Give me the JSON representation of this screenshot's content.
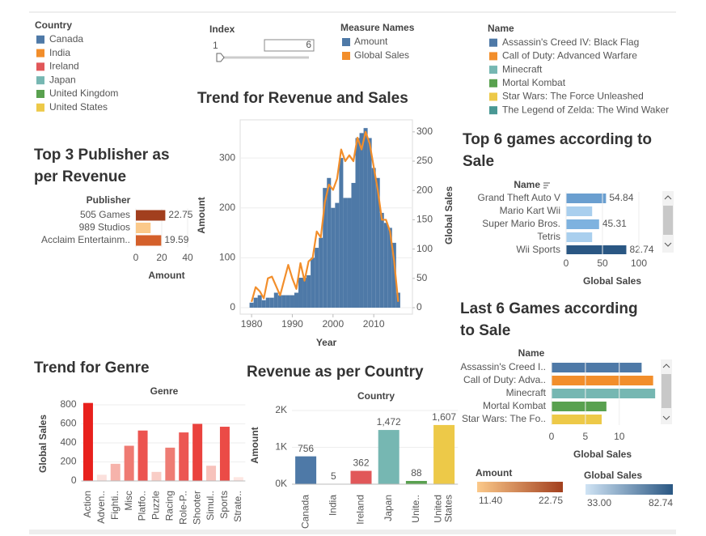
{
  "filters": {
    "title": "Index",
    "min": 1,
    "value": 6
  },
  "chart_data": [
    {
      "type": "hbar",
      "title": "Top 3 Publisher as per Revenue",
      "category_title": "Publisher",
      "categories": [
        "505 Games",
        "989 Studios",
        "Acclaim Entertainm.."
      ],
      "values": [
        22.75,
        11.4,
        19.59
      ],
      "value_labels": [
        "22.75",
        null,
        "19.59"
      ],
      "colors": [
        "#a23f1e",
        "#fbc98a",
        "#d4602b"
      ],
      "xlim": [
        0,
        45
      ],
      "xticks": [
        0,
        20,
        40
      ],
      "xlabel": "Amount",
      "color_legend": {
        "title": "Amount",
        "min": {
          "value": 11.4,
          "label": "11.40"
        },
        "max": 22.75,
        "colors": [
          "#fbc98a",
          "#a23f1e"
        ]
      }
    },
    {
      "type": "combo",
      "title": "Trend for Revenue and Sales",
      "x": [
        1980,
        1981,
        1982,
        1983,
        1984,
        1985,
        1986,
        1987,
        1988,
        1989,
        1990,
        1991,
        1992,
        1993,
        1994,
        1995,
        1996,
        1997,
        1998,
        1999,
        2000,
        2001,
        2002,
        2003,
        2004,
        2005,
        2006,
        2007,
        2008,
        2009,
        2010,
        2011,
        2012,
        2013,
        2014,
        2015,
        2016
      ],
      "xlabel": "Year",
      "xlim": [
        1977.2,
        2019.5
      ],
      "xticks": [
        1980,
        1990,
        2000,
        2010
      ],
      "ylabel": "Amount",
      "ylim": [
        0,
        370
      ],
      "yticks": [
        0,
        100,
        200,
        300
      ],
      "y2label": "Global Sales",
      "y2lim": [
        0,
        315
      ],
      "y2ticks": [
        0,
        50,
        100,
        150,
        200,
        250,
        300
      ],
      "grid": true,
      "legend_title": "Measure Names",
      "series": [
        {
          "name": "Amount",
          "color": "#4e79a7",
          "kind": "bar",
          "values": [
            10,
            20,
            25,
            15,
            20,
            20,
            30,
            25,
            25,
            25,
            25,
            30,
            60,
            60,
            65,
            100,
            120,
            140,
            240,
            260,
            200,
            210,
            300,
            220,
            220,
            250,
            340,
            350,
            360,
            340,
            280,
            260,
            190,
            170,
            160,
            130,
            30
          ]
        },
        {
          "name": "Global Sales",
          "color": "#f28e2b",
          "kind": "line",
          "axis": "y2",
          "values": [
            10,
            35,
            28,
            16,
            50,
            53,
            37,
            21,
            47,
            73,
            50,
            32,
            76,
            46,
            79,
            85,
            130,
            120,
            180,
            210,
            201,
            220,
            270,
            250,
            260,
            250,
            290,
            270,
            300,
            280,
            240,
            200,
            150,
            150,
            130,
            80,
            10
          ]
        }
      ]
    },
    {
      "type": "hbar",
      "title": "Top 6 games according to Sale",
      "category_title": "Name",
      "categories": [
        "Grand Theft Auto V",
        "Mario Kart Wii",
        "Super Mario Bros.",
        "Tetris",
        "Wii Sports"
      ],
      "values": [
        54.84,
        35.8,
        45.31,
        35.8,
        82.74
      ],
      "value_labels": [
        "54.84",
        null,
        "45.31",
        null,
        "82.74"
      ],
      "colors": [
        "#6a9fd0",
        "#a9cfee",
        "#7eb2df",
        "#a9cfee",
        "#2a5783"
      ],
      "xlim": [
        0,
        115
      ],
      "xticks": [
        0,
        50,
        100
      ],
      "xlabel": "Global Sales",
      "color_legend": {
        "title": "Global Sales",
        "min": {
          "value": 33,
          "label": "33.00"
        },
        "max": 82.74,
        "colors": [
          "#cfe3f4",
          "#2a5783"
        ]
      }
    },
    {
      "type": "hbar",
      "title": "Last 6 Games according to Sale",
      "category_title": "Name",
      "categories": [
        "Assassin's Creed I..",
        "Call of Duty: Adva..",
        "Minecraft",
        "Mortal Kombat",
        "Star Wars: The Fo.."
      ],
      "values": [
        13.3,
        15.0,
        15.3,
        8.1,
        7.4
      ],
      "colors": [
        "#4e79a7",
        "#f28e2b",
        "#76b7b2",
        "#59a14f",
        "#edc948"
      ],
      "xlim": [
        0,
        16
      ],
      "xticks": [
        0,
        5,
        10
      ],
      "xlabel": "Global Sales",
      "legend_title": "Name",
      "legend": [
        {
          "name": "Assassin's Creed IV: Black Flag",
          "color": "#4e79a7"
        },
        {
          "name": "Call of Duty: Advanced Warfare",
          "color": "#f28e2b"
        },
        {
          "name": "Minecraft",
          "color": "#76b7b2"
        },
        {
          "name": "Mortal Kombat",
          "color": "#59a14f"
        },
        {
          "name": "Star Wars: The Force Unleashed",
          "color": "#edc948"
        },
        {
          "name": "The Legend of Zelda: The Wind Waker",
          "color": "#499894"
        }
      ]
    },
    {
      "type": "vbar",
      "title": "Trend for Genre",
      "category_title": "Genre",
      "categories": [
        "Action",
        "Adven..",
        "Fighti..",
        "Misc",
        "Platfo..",
        "Puzzle",
        "Racing",
        "Role-P..",
        "Shooter",
        "Simul..",
        "Sports",
        "Strate.."
      ],
      "values": [
        820,
        65,
        180,
        370,
        530,
        95,
        350,
        510,
        600,
        160,
        570,
        40
      ],
      "colors": [
        "#e8201c",
        "#fbe0dc",
        "#f6b3ab",
        "#ef7a72",
        "#ec5450",
        "#f9cdc6",
        "#ee7c74",
        "#ec5652",
        "#ea423d",
        "#f7c2bb",
        "#eb4b46",
        "#fde6e2"
      ],
      "ylabel": "Global Sales",
      "ylim": [
        0,
        870
      ],
      "yticks": [
        0,
        200,
        400,
        600,
        800
      ]
    },
    {
      "type": "vbar",
      "title": "Revenue as per Country",
      "category_title": "Country",
      "categories": [
        "Canada",
        "India",
        "Ireland",
        "Japan",
        "Unite..",
        "United States"
      ],
      "values": [
        756,
        5,
        362,
        1472,
        88,
        1607
      ],
      "value_labels": [
        "756",
        "5",
        "362",
        "1,472",
        "88",
        "1,607"
      ],
      "colors": [
        "#4e79a7",
        "#f28e2b",
        "#e15759",
        "#76b7b2",
        "#59a14f",
        "#edc948"
      ],
      "ylabel": "Amount",
      "ylim": [
        0,
        2100
      ],
      "yticks": [
        {
          "value": 0,
          "label": "0K"
        },
        {
          "value": 1000,
          "label": "1K"
        },
        {
          "value": 2000,
          "label": "2K"
        }
      ],
      "legend_title": "Country",
      "legend": [
        {
          "name": "Canada",
          "color": "#4e79a7"
        },
        {
          "name": "India",
          "color": "#f28e2b"
        },
        {
          "name": "Ireland",
          "color": "#e15759"
        },
        {
          "name": "Japan",
          "color": "#76b7b2"
        },
        {
          "name": "United Kingdom",
          "color": "#59a14f"
        },
        {
          "name": "United States",
          "color": "#edc948"
        }
      ]
    }
  ]
}
